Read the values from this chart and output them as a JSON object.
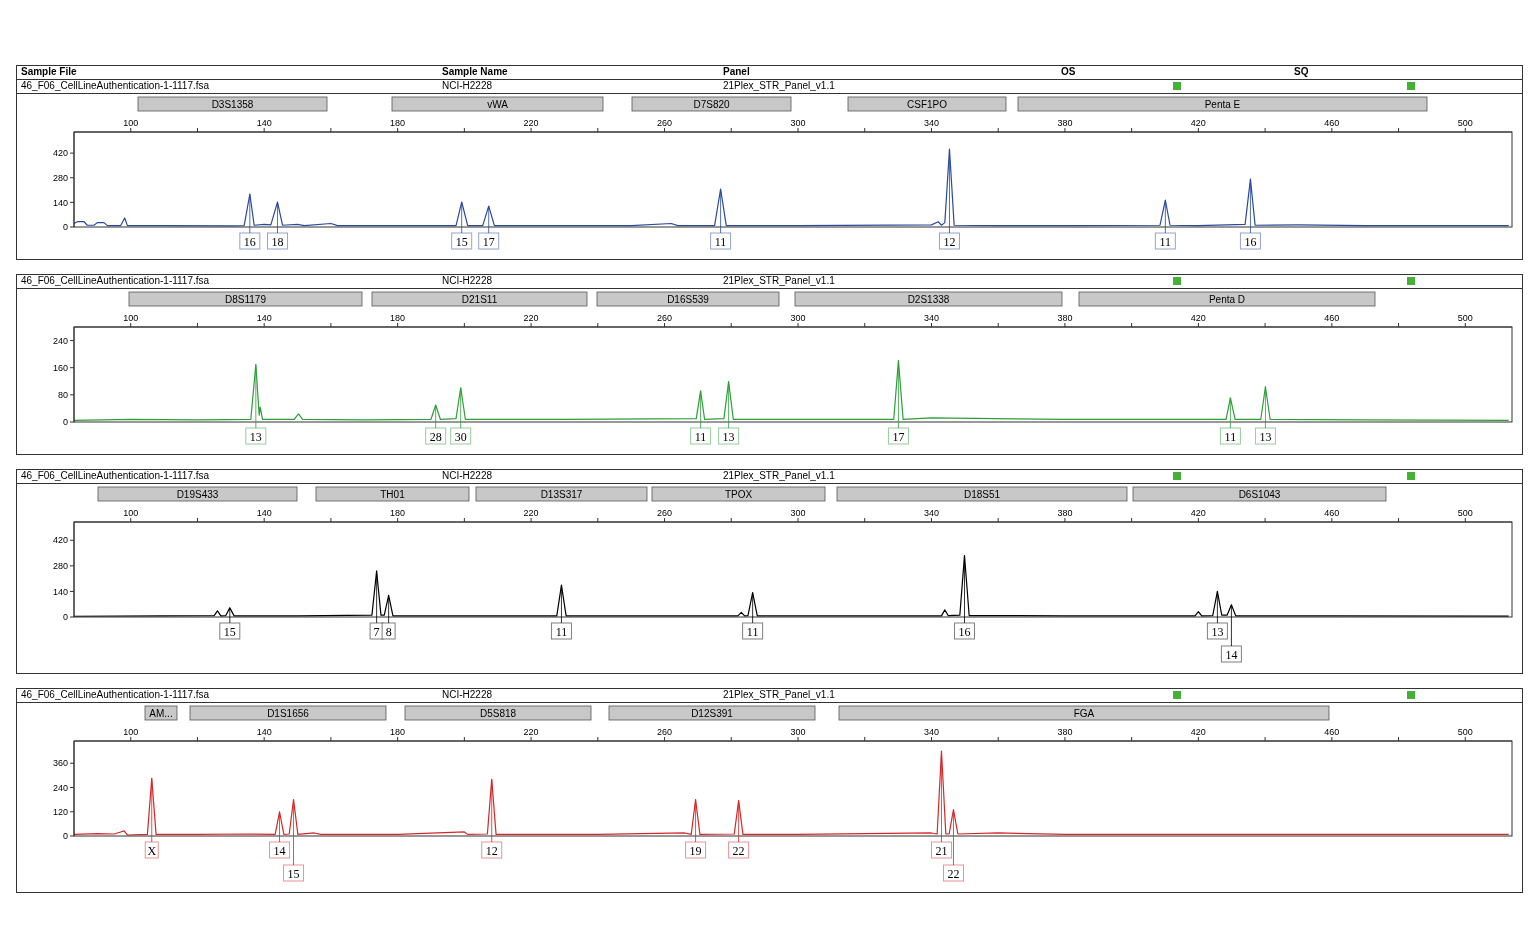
{
  "chart_data": [
    {
      "type": "line",
      "color": "#2a4a9c",
      "x": [
        83,
        84,
        86,
        87,
        89,
        90,
        92,
        93,
        97,
        98.2,
        99,
        110,
        130,
        134,
        135.7,
        137,
        140,
        142,
        144,
        145.5,
        150,
        152,
        160,
        162,
        180,
        197.5,
        199.2,
        201,
        205.5,
        207.3,
        209,
        230,
        250,
        262,
        264,
        275,
        276.8,
        278.5,
        300,
        340,
        342,
        343,
        344,
        345.4,
        346.8,
        360,
        380,
        408.5,
        410.1,
        411.5,
        420,
        434,
        435.6,
        437,
        450,
        470,
        490,
        513
      ],
      "values": [
        20,
        30,
        30,
        10,
        10,
        25,
        25,
        8,
        8,
        51,
        8,
        8,
        6,
        8,
        187,
        10,
        15,
        12,
        142,
        10,
        15,
        8,
        20,
        8,
        8,
        8,
        142,
        8,
        8,
        119,
        8,
        8,
        8,
        20,
        8,
        8,
        216,
        8,
        8,
        12,
        30,
        10,
        25,
        443,
        10,
        8,
        8,
        10,
        153,
        10,
        8,
        15,
        272,
        10,
        12,
        8,
        8,
        8
      ],
      "xlim": [
        83,
        514
      ],
      "xticks": [
        100,
        {
          "value": 120,
          "label": null
        },
        140,
        {
          "value": 160,
          "label": null
        },
        180,
        {
          "value": 200,
          "label": null
        },
        220,
        {
          "value": 240,
          "label": null
        },
        260,
        {
          "value": 280,
          "label": null
        },
        300,
        {
          "value": 320,
          "label": null
        },
        340,
        {
          "value": 360,
          "label": null
        },
        380,
        {
          "value": 400,
          "label": null
        },
        420,
        {
          "value": 440,
          "label": null
        },
        460,
        {
          "value": 480,
          "label": null
        },
        500
      ],
      "ylim": [
        0,
        540
      ],
      "yticks": [
        0,
        140,
        280,
        420
      ],
      "annotations": [
        "46_F06_CellLineAuthentication-1-1117.fsa",
        "NCI-H2228",
        "21Plex_STR_Panel_v1.1",
        "D3S1358",
        "vWA",
        "D7S820",
        "CSF1PO",
        "Penta E",
        "Sample File",
        "Sample Name",
        "Panel",
        "OS",
        "SQ",
        {
          "text": "16",
          "x": 135.7,
          "y": 187
        },
        {
          "text": "18",
          "x": 144,
          "y": 142
        },
        {
          "text": "15",
          "x": 199.2,
          "y": 142
        },
        {
          "text": "17",
          "x": 207.3,
          "y": 119
        },
        {
          "text": "11",
          "x": 276.8,
          "y": 216
        },
        {
          "text": "12",
          "x": 345.4,
          "y": 443
        },
        {
          "text": "11",
          "x": 410.1,
          "y": 153
        },
        {
          "text": "16",
          "x": 435.6,
          "y": 272
        }
      ]
    },
    {
      "type": "line",
      "color": "#2e9e3a",
      "x": [
        83,
        100,
        120,
        136,
        137.5,
        138.5,
        138.8,
        139.5,
        149,
        150.3,
        151.5,
        170,
        190,
        191.4,
        192.8,
        197.5,
        198.9,
        200.3,
        230,
        269.5,
        270.8,
        272,
        277.8,
        279.2,
        280.6,
        300,
        328.7,
        330.1,
        331.5,
        340,
        380,
        428.3,
        429.6,
        431,
        438.7,
        440.1,
        441.5,
        470,
        513
      ],
      "values": [
        5,
        8,
        6,
        8,
        169,
        20,
        44,
        8,
        8,
        24,
        8,
        6,
        8,
        50,
        8,
        10,
        101,
        8,
        8,
        10,
        92,
        8,
        10,
        119,
        8,
        8,
        8,
        181,
        8,
        12,
        8,
        8,
        71,
        8,
        8,
        104,
        8,
        6,
        5
      ],
      "xlim": [
        83,
        514
      ],
      "xticks": [
        100,
        {
          "value": 120,
          "label": null
        },
        140,
        {
          "value": 160,
          "label": null
        },
        180,
        {
          "value": 200,
          "label": null
        },
        220,
        {
          "value": 240,
          "label": null
        },
        260,
        {
          "value": 280,
          "label": null
        },
        300,
        {
          "value": 320,
          "label": null
        },
        340,
        {
          "value": 360,
          "label": null
        },
        380,
        {
          "value": 400,
          "label": null
        },
        420,
        {
          "value": 440,
          "label": null
        },
        460,
        {
          "value": 480,
          "label": null
        },
        500
      ],
      "ylim": [
        0,
        280
      ],
      "yticks": [
        0,
        80,
        160,
        240
      ],
      "annotations": [
        "46_F06_CellLineAuthentication-1-1117.fsa",
        "NCI-H2228",
        "21Plex_STR_Panel_v1.1",
        "D8S1179",
        "D21S11",
        "D16S539",
        "D2S1338",
        "Penta D",
        {
          "text": "13",
          "x": 137.5,
          "y": 169
        },
        {
          "text": "28",
          "x": 191.4,
          "y": 50
        },
        {
          "text": "30",
          "x": 198.9,
          "y": 101
        },
        {
          "text": "11",
          "x": 270.8,
          "y": 92
        },
        {
          "text": "13",
          "x": 279.2,
          "y": 119
        },
        {
          "text": "17",
          "x": 330.1,
          "y": 181
        },
        {
          "text": "11",
          "x": 429.6,
          "y": 71
        },
        {
          "text": "13",
          "x": 440.1,
          "y": 104
        }
      ]
    },
    {
      "type": "line",
      "color": "#000000",
      "x": [
        83,
        110,
        125,
        126,
        127,
        128.5,
        129.7,
        131,
        150,
        172.3,
        173.7,
        175,
        176,
        177.3,
        178.6,
        200,
        227.7,
        229.1,
        230.5,
        250,
        282,
        283,
        284,
        285,
        286.4,
        287.8,
        320,
        343,
        344,
        345,
        348.5,
        349.9,
        351.3,
        380,
        419,
        420,
        421,
        424.3,
        425.7,
        427,
        428.6,
        429.9,
        431.2,
        460,
        513
      ],
      "values": [
        4,
        6,
        8,
        34,
        6,
        8,
        50,
        6,
        6,
        10,
        252,
        10,
        10,
        118,
        6,
        6,
        6,
        174,
        6,
        6,
        6,
        25,
        6,
        8,
        134,
        6,
        6,
        6,
        39,
        8,
        10,
        336,
        8,
        6,
        6,
        30,
        6,
        8,
        140,
        10,
        10,
        67,
        6,
        6,
        5
      ],
      "xlim": [
        83,
        514
      ],
      "xticks": [
        100,
        {
          "value": 120,
          "label": null
        },
        140,
        {
          "value": 160,
          "label": null
        },
        180,
        {
          "value": 200,
          "label": null
        },
        220,
        {
          "value": 240,
          "label": null
        },
        260,
        {
          "value": 280,
          "label": null
        },
        300,
        {
          "value": 320,
          "label": null
        },
        340,
        {
          "value": 360,
          "label": null
        },
        380,
        {
          "value": 400,
          "label": null
        },
        420,
        {
          "value": 440,
          "label": null
        },
        460,
        {
          "value": 480,
          "label": null
        },
        500
      ],
      "ylim": [
        0,
        520
      ],
      "yticks": [
        0,
        140,
        280,
        420
      ],
      "annotations": [
        "46_F06_CellLineAuthentication-1-1117.fsa",
        "NCI-H2228",
        "21Plex_STR_Panel_v1.1",
        "D19S433",
        "TH01",
        "D13S317",
        "TPOX",
        "D18S51",
        "D6S1043",
        {
          "text": "15",
          "x": 129.7,
          "y": 50
        },
        {
          "text": "7",
          "x": 173.7,
          "y": 252
        },
        {
          "text": "8",
          "x": 177.3,
          "y": 118
        },
        {
          "text": "11",
          "x": 229.1,
          "y": 174
        },
        {
          "text": "11",
          "x": 286.4,
          "y": 134
        },
        {
          "text": "16",
          "x": 349.9,
          "y": 336
        },
        {
          "text": "13",
          "x": 425.7,
          "y": 140
        },
        {
          "text": "14",
          "x": 429.9,
          "y": 67
        }
      ]
    },
    {
      "type": "line",
      "color": "#d62728",
      "x": [
        83,
        90,
        95,
        97,
        98,
        99,
        105,
        106.3,
        107.6,
        120,
        135,
        143.3,
        144.6,
        145.9,
        147.5,
        148.8,
        150.1,
        155,
        157,
        180,
        200,
        201,
        206.9,
        208.2,
        209.5,
        240,
        266,
        268,
        269.3,
        270.6,
        280.9,
        282.2,
        283.5,
        300,
        340,
        341.7,
        343,
        344.3,
        345.3,
        346.6,
        347.9,
        360,
        380,
        420,
        513
      ],
      "values": [
        8,
        12,
        10,
        20,
        25,
        5,
        8,
        285,
        8,
        8,
        10,
        8,
        120,
        8,
        10,
        180,
        8,
        15,
        8,
        8,
        20,
        8,
        10,
        280,
        8,
        8,
        15,
        8,
        180,
        8,
        10,
        175,
        8,
        8,
        15,
        10,
        420,
        10,
        10,
        130,
        10,
        15,
        8,
        8,
        8
      ],
      "xlim": [
        83,
        514
      ],
      "xticks": [
        100,
        {
          "value": 120,
          "label": null
        },
        140,
        {
          "value": 160,
          "label": null
        },
        180,
        {
          "value": 200,
          "label": null
        },
        220,
        {
          "value": 240,
          "label": null
        },
        260,
        {
          "value": 280,
          "label": null
        },
        300,
        {
          "value": 320,
          "label": null
        },
        340,
        {
          "value": 360,
          "label": null
        },
        380,
        {
          "value": 400,
          "label": null
        },
        420,
        {
          "value": 440,
          "label": null
        },
        460,
        {
          "value": 480,
          "label": null
        },
        500
      ],
      "ylim": [
        0,
        470
      ],
      "yticks": [
        0,
        120,
        240,
        360
      ],
      "annotations": [
        "46_F06_CellLineAuthentication-1-1117.fsa",
        "NCI-H2228",
        "21Plex_STR_Panel_v1.1",
        "AM...",
        "D1S1656",
        "D5S818",
        "D12S391",
        "FGA",
        {
          "text": "X",
          "x": 106.3,
          "y": 285
        },
        {
          "text": "14",
          "x": 144.6,
          "y": 120
        },
        {
          "text": "15",
          "x": 148.8,
          "y": 180
        },
        {
          "text": "12",
          "x": 208.2,
          "y": 280
        },
        {
          "text": "19",
          "x": 269.3,
          "y": 180
        },
        {
          "text": "22",
          "x": 282.2,
          "y": 175
        },
        {
          "text": "21",
          "x": 343,
          "y": 420
        },
        {
          "text": "22",
          "x": 346.6,
          "y": 130
        }
      ]
    }
  ]
}
